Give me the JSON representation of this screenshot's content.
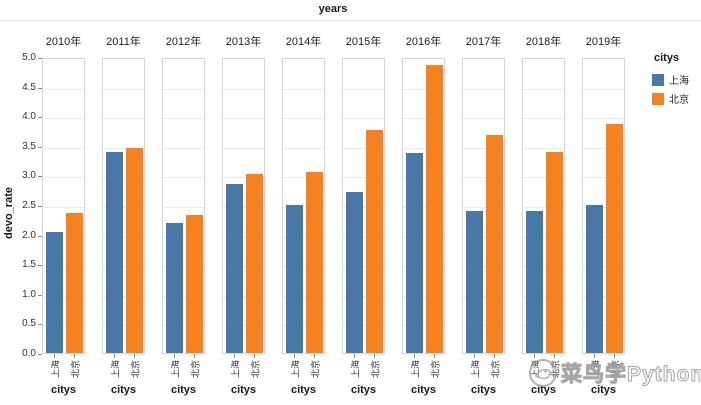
{
  "title": "years",
  "y_axis": {
    "label": "devo_rate"
  },
  "x_axis": {
    "group_label": "citys"
  },
  "legend": {
    "title": "citys",
    "items": [
      {
        "label": "上海",
        "color": "#4878a8"
      },
      {
        "label": "北京",
        "color": "#f5821f"
      }
    ]
  },
  "watermark": {
    "text": "菜鸟学Python"
  },
  "chart_data": {
    "type": "bar",
    "title": "years",
    "xlabel": "citys",
    "ylabel": "devo_rate",
    "categories": [
      "2010年",
      "2011年",
      "2012年",
      "2013年",
      "2014年",
      "2015年",
      "2016年",
      "2017年",
      "2018年",
      "2019年"
    ],
    "series": [
      {
        "name": "上海",
        "color": "#4878a8",
        "values": [
          2.05,
          3.4,
          2.2,
          2.85,
          2.5,
          2.72,
          3.38,
          2.4,
          2.4,
          2.5
        ]
      },
      {
        "name": "北京",
        "color": "#f5821f",
        "values": [
          2.36,
          3.46,
          2.33,
          3.02,
          3.05,
          3.77,
          4.87,
          3.68,
          3.4,
          3.87
        ]
      }
    ],
    "ylim": [
      0,
      5
    ],
    "ytick_step": 0.5,
    "y_ticks": [
      "0.0",
      "0.5",
      "1.0",
      "1.5",
      "2.0",
      "2.5",
      "3.0",
      "3.5",
      "4.0",
      "4.5",
      "5.0"
    ],
    "grid": true,
    "facet_by": "years",
    "legend_position": "right"
  }
}
